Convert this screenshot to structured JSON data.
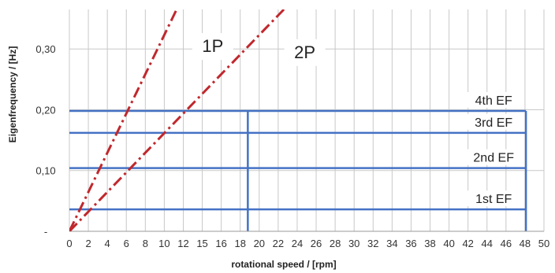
{
  "chart_data": {
    "type": "line",
    "xlabel": "rotational speed / [rpm]",
    "ylabel": "Eigenfrequency / [Hz]",
    "xlim": [
      0,
      50
    ],
    "ylim": [
      0,
      0.365
    ],
    "x_ticks": [
      "0",
      "2",
      "4",
      "6",
      "8",
      "10",
      "12",
      "15",
      "16",
      "18",
      "20",
      "22",
      "24",
      "26",
      "28",
      "30",
      "32",
      "34",
      "36",
      "38",
      "40",
      "42",
      "44",
      "46",
      "48",
      "50"
    ],
    "y_ticks": [
      {
        "value": 0,
        "label": "-"
      },
      {
        "value": 0.1,
        "label": "0,10"
      },
      {
        "value": 0.2,
        "label": "0,20"
      },
      {
        "value": 0.3,
        "label": "0,30"
      }
    ],
    "grid": true,
    "series": [
      {
        "name": "1P",
        "color": "#c0282d",
        "style": "dash-dot",
        "points": [
          [
            0,
            0
          ],
          [
            11.3,
            0.365
          ]
        ]
      },
      {
        "name": "2P",
        "color": "#c0282d",
        "style": "dash-dot",
        "points": [
          [
            0,
            0
          ],
          [
            22.6,
            0.365
          ]
        ]
      }
    ],
    "horizontal_lines": [
      {
        "name": "1st EF",
        "value": 0.036,
        "color": "#4472c4"
      },
      {
        "name": "2nd EF",
        "value": 0.104,
        "color": "#4472c4"
      },
      {
        "name": "3rd EF",
        "value": 0.162,
        "color": "#4472c4"
      },
      {
        "name": "4th EF",
        "value": 0.198,
        "color": "#4472c4"
      }
    ],
    "vertical_lines": [
      {
        "value": 18.8,
        "y_to": 0.198,
        "color": "#4472c4"
      },
      {
        "value": 48.1,
        "y_to": 0.198,
        "color": "#4472c4"
      }
    ]
  }
}
